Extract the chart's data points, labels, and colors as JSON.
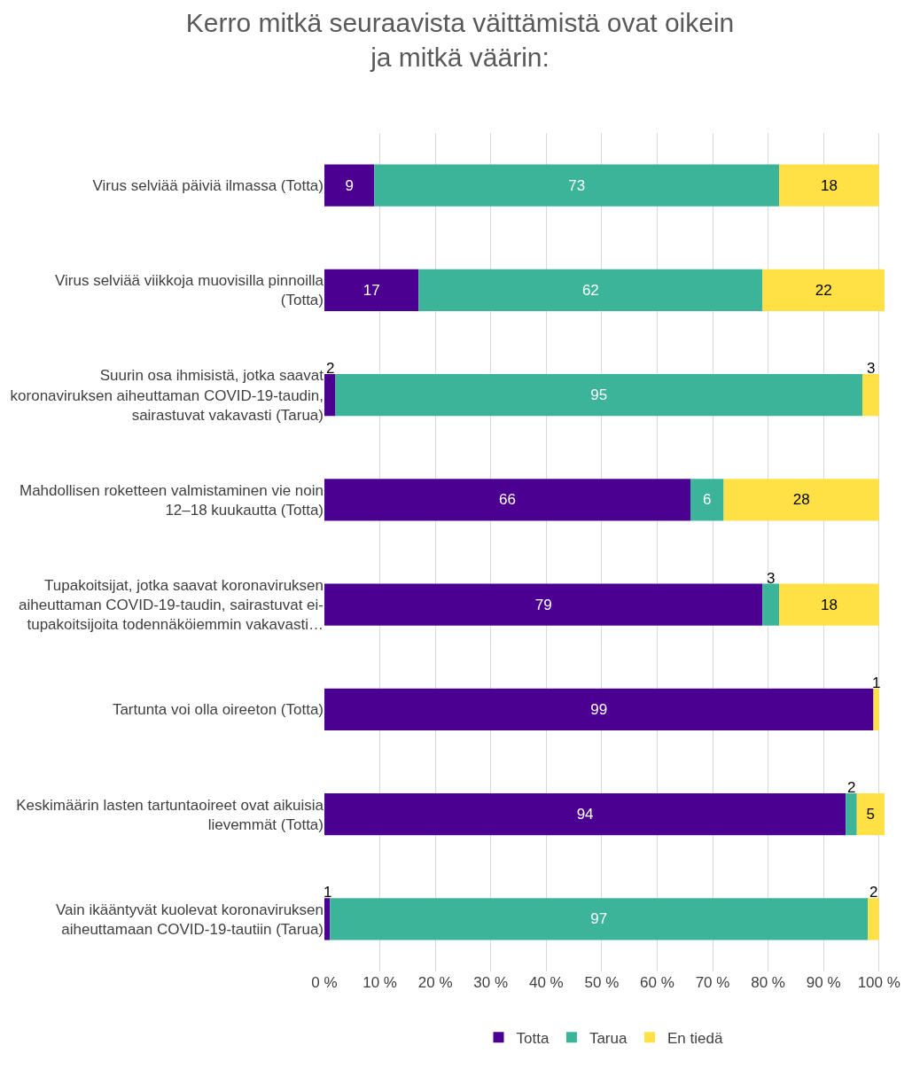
{
  "chart_data": {
    "type": "bar",
    "orientation": "horizontal",
    "stacked": true,
    "title": "Kerro mitkä seuraavista väittämistä ovat oikein ja mitkä väärin:",
    "categories": [
      "Virus selviää päiviä ilmassa (Totta)",
      "Virus selviää viikkoja muovisilla pinnoilla (Totta)",
      "Suurin osa ihmisistä, jotka saavat koronaviruksen aiheuttaman COVID-19-taudin, sairastuvat vakavasti (Tarua)",
      "Mahdollisen roketteen valmistaminen vie noin 12–18 kuukautta (Totta)",
      "Tupakoitsijat, jotka saavat koronaviruksen aiheuttaman COVID-19-taudin, sairastuvat ei-tupakoitsijoita todennäköiemmin vakavasti…",
      "Tartunta voi olla oireeton (Totta)",
      "Keskimäärin lasten tartuntaoireet ovat aikuisia lievemmät (Totta)",
      "Vain ikääntyvät kuolevat koronaviruksen aiheuttamaan COVID-19-tautiin (Tarua)"
    ],
    "series": [
      {
        "name": "Totta",
        "color": "#4b0091",
        "values": [
          9,
          17,
          2,
          66,
          79,
          99,
          94,
          1
        ],
        "value_labels": [
          "9",
          "17",
          "2",
          "66",
          "79",
          "99",
          "94",
          "1"
        ]
      },
      {
        "name": "Tarua",
        "color": "#3cb49a",
        "values": [
          73,
          62,
          95,
          6,
          3,
          0,
          2,
          97
        ],
        "value_labels": [
          "73",
          "62",
          "95",
          "6",
          "3",
          null,
          "2",
          "97"
        ]
      },
      {
        "name": "En tiedä",
        "color": "#ffe045",
        "values": [
          18,
          22,
          3,
          28,
          18,
          1,
          5,
          2
        ],
        "value_labels": [
          "18",
          "22",
          "3",
          "28",
          "18",
          "1",
          "5",
          "2"
        ]
      }
    ],
    "xlim": [
      0,
      101
    ],
    "xticks": [
      {
        "value": 0,
        "label": "0 %"
      },
      {
        "value": 10,
        "label": "10 %"
      },
      {
        "value": 20,
        "label": "20 %"
      },
      {
        "value": 30,
        "label": "30 %"
      },
      {
        "value": 40,
        "label": "40 %"
      },
      {
        "value": 50,
        "label": "50 %"
      },
      {
        "value": 60,
        "label": "60 %"
      },
      {
        "value": 70,
        "label": "70 %"
      },
      {
        "value": 80,
        "label": "80 %"
      },
      {
        "value": 90,
        "label": "90 %"
      },
      {
        "value": 100,
        "label": "100 %"
      }
    ],
    "grid": "x",
    "legend": "bottom"
  }
}
